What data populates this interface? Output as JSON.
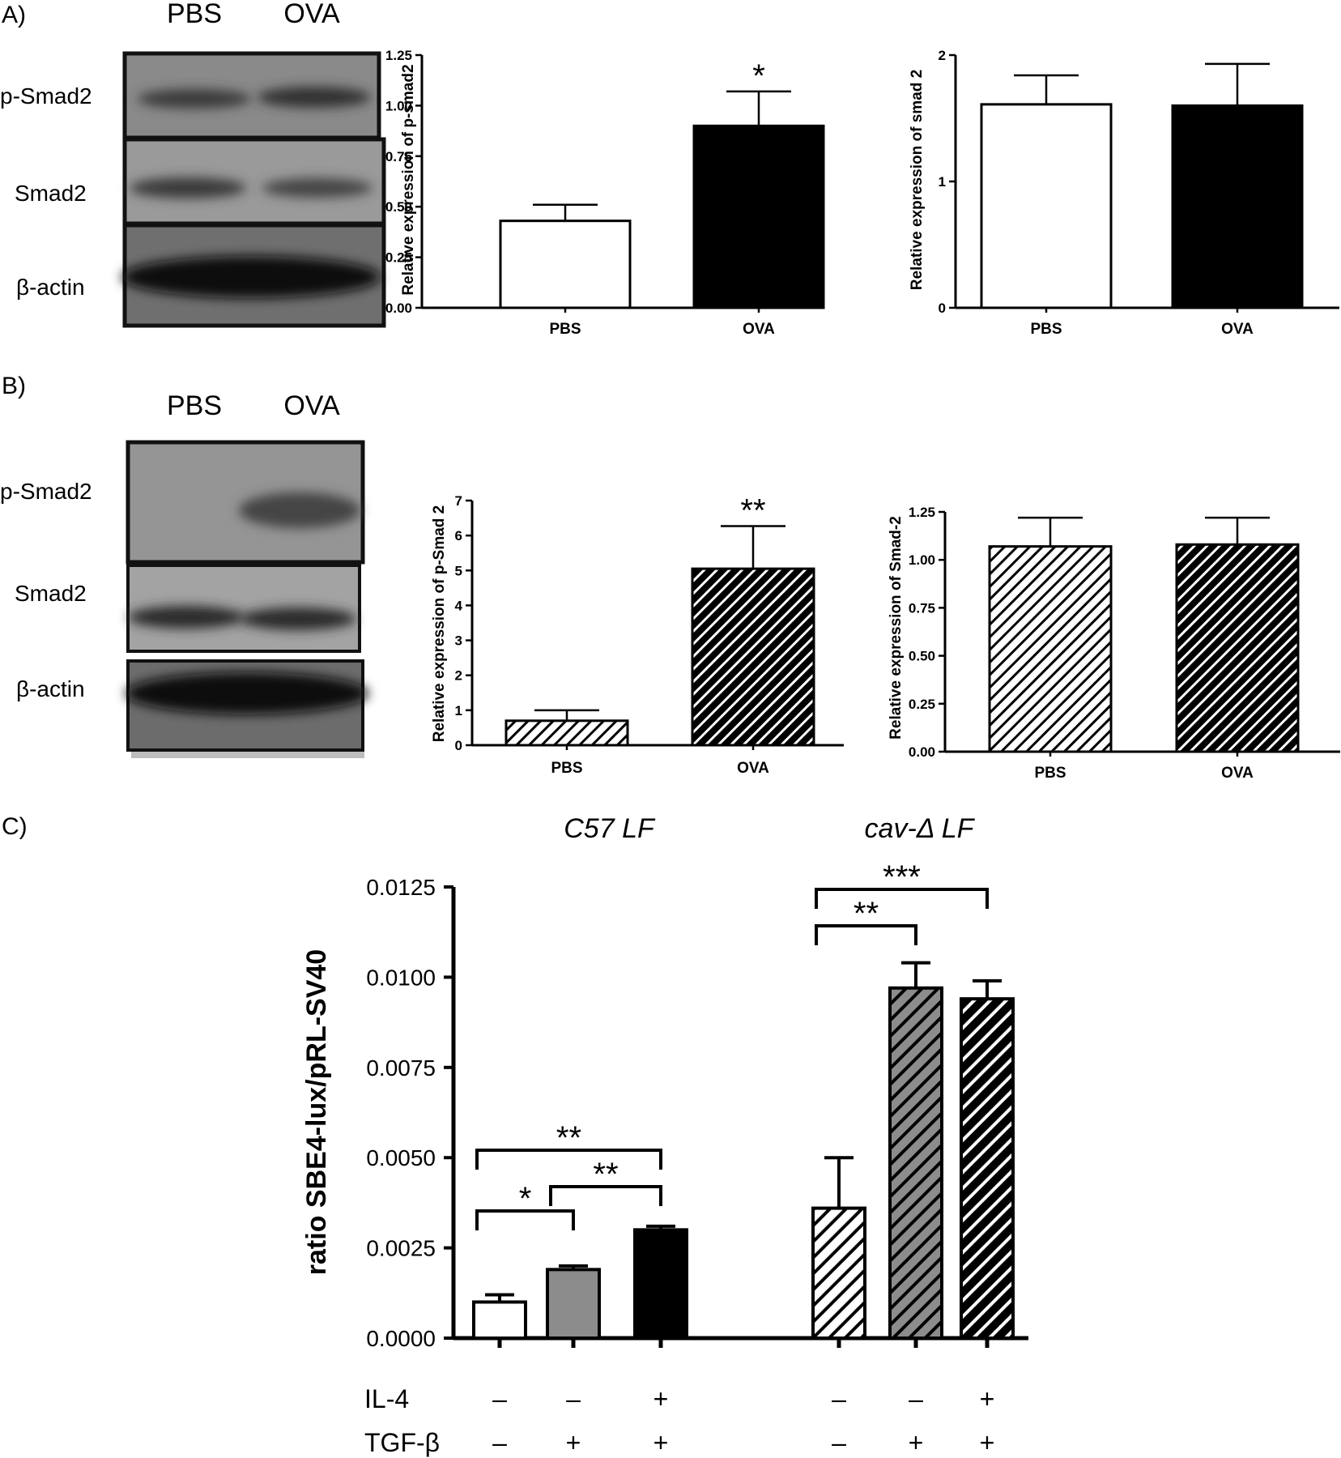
{
  "panels": {
    "a_label": "A)",
    "b_label": "B)",
    "c_label": "C)"
  },
  "blot_a": {
    "lanes": [
      "PBS",
      "OVA"
    ],
    "rows": [
      "p-Smad2",
      "Smad2",
      "β-actin"
    ]
  },
  "blot_b": {
    "lanes": [
      "PBS",
      "OVA"
    ],
    "rows": [
      "p-Smad2",
      "Smad2",
      "β-actin"
    ]
  },
  "chart_data": [
    {
      "id": "a1",
      "type": "bar",
      "categories": [
        "PBS",
        "OVA"
      ],
      "values": [
        0.43,
        0.9
      ],
      "errors": [
        0.08,
        0.17
      ],
      "fills": [
        "white",
        "black"
      ],
      "ylabel": "Relative expression of p-smad2",
      "ylim": [
        0,
        1.25
      ],
      "yticks": [
        "0.00",
        "0.25",
        "0.50",
        "0.75",
        "1.00",
        "1.25"
      ],
      "significance": [
        "",
        "*"
      ]
    },
    {
      "id": "a2",
      "type": "bar",
      "categories": [
        "PBS",
        "OVA"
      ],
      "values": [
        1.61,
        1.6
      ],
      "errors": [
        0.23,
        0.33
      ],
      "fills": [
        "white",
        "black"
      ],
      "ylabel": "Relative expression of smad 2",
      "ylim": [
        0,
        2
      ],
      "yticks": [
        "0",
        "1",
        "2"
      ]
    },
    {
      "id": "b1",
      "type": "bar",
      "categories": [
        "PBS",
        "OVA"
      ],
      "values": [
        0.7,
        5.05
      ],
      "errors": [
        0.3,
        1.22
      ],
      "fills": [
        "hatch-light",
        "hatch-dark"
      ],
      "ylabel": "Relative expression of p-Smad 2",
      "ylim": [
        0,
        7
      ],
      "yticks": [
        "0",
        "1",
        "2",
        "3",
        "4",
        "5",
        "6",
        "7"
      ],
      "significance": [
        "",
        "**"
      ]
    },
    {
      "id": "b2",
      "type": "bar",
      "categories": [
        "PBS",
        "OVA"
      ],
      "values": [
        1.07,
        1.08
      ],
      "errors": [
        0.15,
        0.14
      ],
      "fills": [
        "hatch-light",
        "hatch-dark"
      ],
      "ylabel": "Relative expression of Smad-2",
      "ylim": [
        0,
        1.25
      ],
      "yticks": [
        "0.00",
        "0.25",
        "0.50",
        "0.75",
        "1.00",
        "1.25"
      ]
    },
    {
      "id": "c",
      "type": "bar",
      "groups": [
        "C57 LF",
        "cav-Δ LF"
      ],
      "values": [
        0.001,
        0.0019,
        0.003,
        0.0036,
        0.0097,
        0.0094
      ],
      "errors": [
        0.0002,
        0.0001,
        0.0001,
        0.0014,
        0.0007,
        0.0005
      ],
      "fills": [
        "white",
        "gray",
        "black",
        "hatch-white",
        "hatch-gray",
        "hatch-black"
      ],
      "ylabel": "ratio SBE4-lux/pRL-SV40",
      "ylim": [
        0,
        0.0125
      ],
      "yticks": [
        "0.0000",
        "0.0025",
        "0.0050",
        "0.0075",
        "0.0100",
        "0.0125"
      ],
      "treatment_labels": [
        "IL-4",
        "TGF-β"
      ],
      "il4": [
        "–",
        "–",
        "+",
        "–",
        "–",
        "+"
      ],
      "tgfb": [
        "–",
        "+",
        "+",
        "–",
        "+",
        "+"
      ],
      "brackets": [
        {
          "from": 0,
          "to": 2,
          "label": "**"
        },
        {
          "from": 0,
          "to": 1,
          "label": "*"
        },
        {
          "from": 1,
          "to": 2,
          "label": "**"
        },
        {
          "from": 3,
          "to": 5,
          "label": "***"
        },
        {
          "from": 3,
          "to": 4,
          "label": "**"
        }
      ]
    }
  ]
}
